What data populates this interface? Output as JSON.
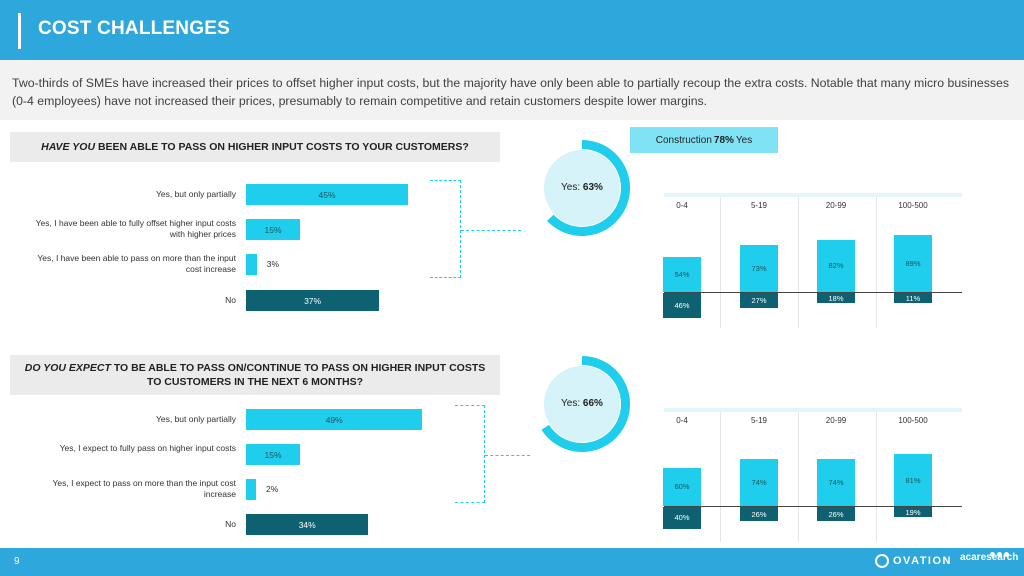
{
  "header": {
    "title": "COST CHALLENGES"
  },
  "intro": "Two-thirds of SMEs have increased their prices to offset higher input costs, but the majority have only been able to partially recoup the extra costs. Notable that many micro businesses (0-4 employees) have not increased their prices, presumably to remain competitive and retain customers despite lower margins.",
  "q1": {
    "em": "HAVE YOU",
    "rest": " BEEN ABLE TO PASS ON HIGHER INPUT COSTS TO YOUR CUSTOMERS?"
  },
  "q2": {
    "em": "DO YOU EXPECT",
    "rest": " TO BE ABLE TO PASS ON/CONTINUE TO PASS ON HIGHER INPUT COSTS TO CUSTOMERS IN THE NEXT 6 MONTHS?"
  },
  "callout": {
    "prefix": "Construction",
    "value": "78%",
    "suffix": "Yes"
  },
  "footer": {
    "page": "9",
    "logo1": "OVATION",
    "logo2": "acaresearch"
  },
  "colors": {
    "light": "#1fcdec",
    "dark": "#0e6170",
    "header": "#2ea7dd"
  },
  "chart_data": [
    {
      "type": "bar",
      "orientation": "horizontal",
      "categories": [
        "Yes, but only partially",
        "Yes, I have been able to fully offset higher input costs with higher prices",
        "Yes, I have been able to pass on more than the input cost increase",
        "No"
      ],
      "values": [
        45,
        15,
        3,
        37
      ],
      "labels": [
        "45%",
        "15%",
        "3%",
        "37%"
      ]
    },
    {
      "type": "pie",
      "variant": "donut",
      "label_prefix": "Yes:",
      "value": 63,
      "value_label": "63%"
    },
    {
      "type": "bar",
      "orientation": "diverging-vertical",
      "categories": [
        "0-4",
        "5-19",
        "20-99",
        "100-500"
      ],
      "series": [
        {
          "values": [
            54,
            73,
            82,
            89
          ],
          "labels": [
            "54%",
            "73%",
            "82%",
            "89%"
          ]
        },
        {
          "values": [
            46,
            27,
            18,
            11
          ],
          "labels": [
            "46%",
            "27%",
            "18%",
            "11%"
          ]
        }
      ]
    },
    {
      "type": "bar",
      "orientation": "horizontal",
      "categories": [
        "Yes, but only partially",
        "Yes, I expect to fully pass on higher input costs",
        "Yes, I expect to pass on more than the input cost increase",
        "No"
      ],
      "values": [
        49,
        15,
        2,
        34
      ],
      "labels": [
        "49%",
        "15%",
        "2%",
        "34%"
      ]
    },
    {
      "type": "pie",
      "variant": "donut",
      "label_prefix": "Yes:",
      "value": 66,
      "value_label": "66%"
    },
    {
      "type": "bar",
      "orientation": "diverging-vertical",
      "categories": [
        "0-4",
        "5-19",
        "20-99",
        "100-500"
      ],
      "series": [
        {
          "values": [
            60,
            74,
            74,
            81
          ],
          "labels": [
            "60%",
            "74%",
            "74%",
            "81%"
          ]
        },
        {
          "values": [
            40,
            26,
            26,
            19
          ],
          "labels": [
            "40%",
            "26%",
            "26%",
            "19%"
          ]
        }
      ]
    }
  ]
}
